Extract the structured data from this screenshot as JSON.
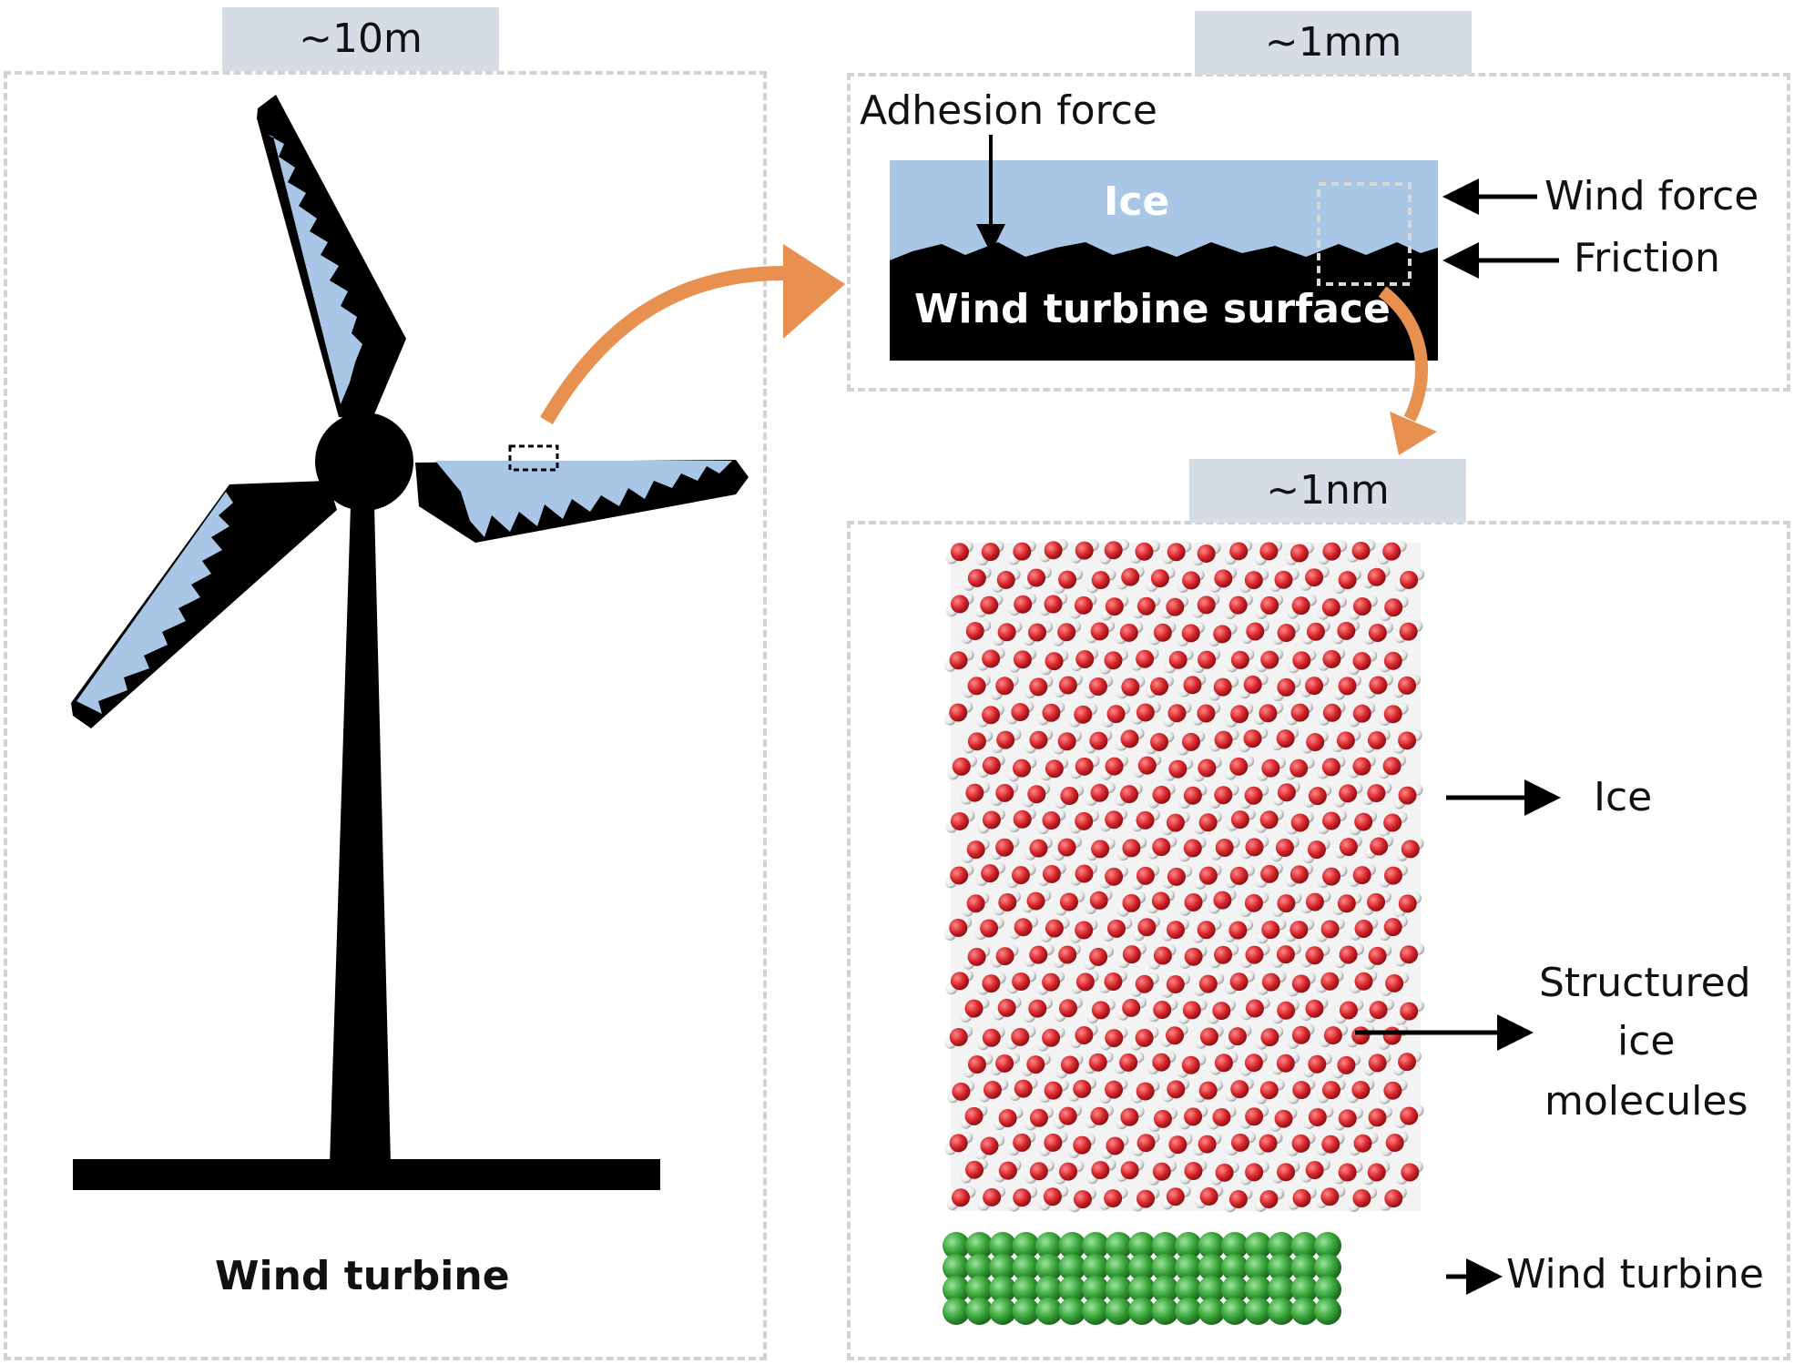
{
  "panels": {
    "macro": {
      "scale": "~10m",
      "caption": "Wind turbine"
    },
    "micro": {
      "scale": "~1mm",
      "adhesion_label": "Adhesion force",
      "ice_label": "Ice",
      "surface_label": "Wind turbine surface",
      "wind_force_label": "Wind force",
      "friction_label": "Friction"
    },
    "nano": {
      "scale": "~1nm",
      "ice_label": "Ice",
      "structured_line1": "Structured",
      "structured_line2": "ice",
      "structured_line3": "molecules",
      "substrate_label": "Wind turbine"
    }
  },
  "colors": {
    "ice_blue": "#a9c6e6",
    "black": "#000000",
    "orange_arrow": "#e8904f",
    "badge": "#d6dce4",
    "oxygen": "#d8262c",
    "hydrogen": "#eeeeee",
    "substrate": "#3ca83c"
  }
}
